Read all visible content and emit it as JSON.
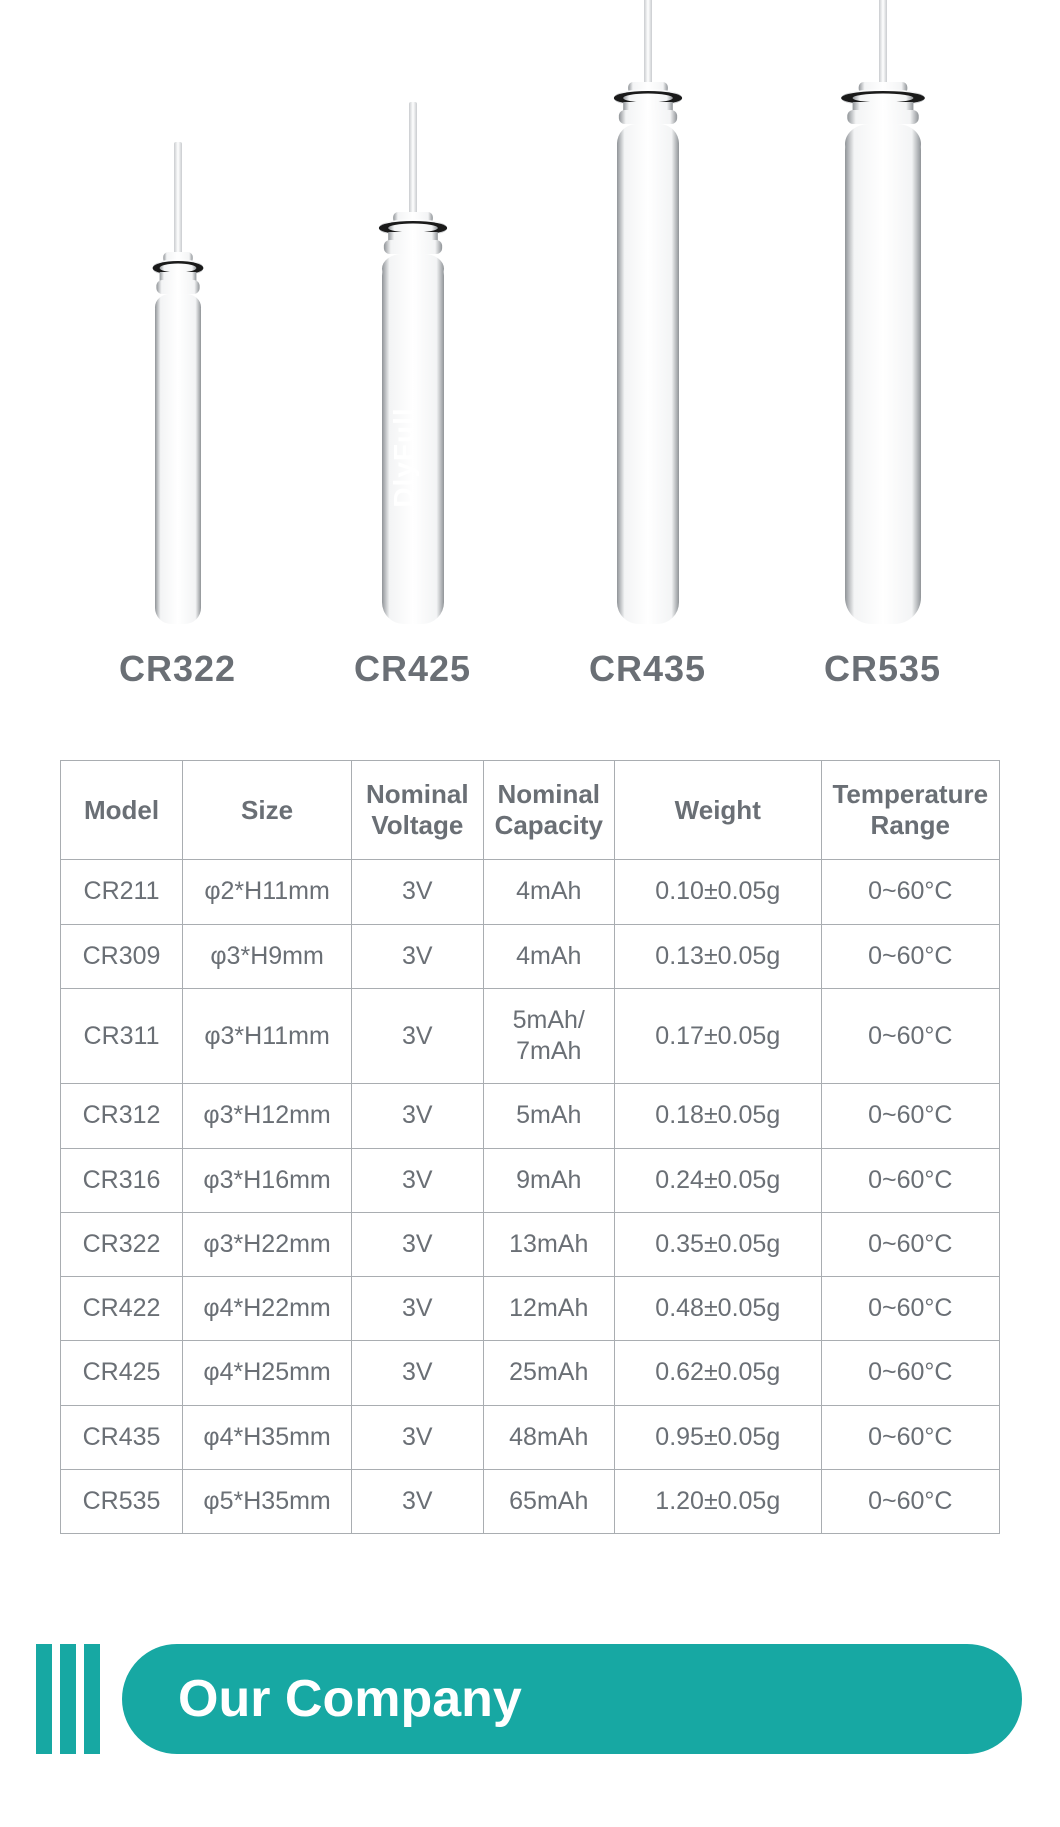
{
  "batteries": [
    {
      "label": "CR322",
      "body_h": 330,
      "body_w": 46,
      "watermark": ""
    },
    {
      "label": "CR425",
      "body_h": 370,
      "body_w": 62,
      "watermark": "DlyFull"
    },
    {
      "label": "CR435",
      "body_h": 500,
      "body_w": 62,
      "watermark": ""
    },
    {
      "label": "CR535",
      "body_h": 500,
      "body_w": 76,
      "watermark": ""
    }
  ],
  "table": {
    "headers": [
      "Model",
      "Size",
      "Nominal\nVoltage",
      "Nominal\nCapacity",
      "Weight",
      "Temperature\nRange"
    ],
    "rows": [
      [
        "CR211",
        "φ2*H11mm",
        "3V",
        "4mAh",
        "0.10±0.05g",
        "0~60°C"
      ],
      [
        "CR309",
        "φ3*H9mm",
        "3V",
        "4mAh",
        "0.13±0.05g",
        "0~60°C"
      ],
      [
        "CR311",
        "φ3*H11mm",
        "3V",
        "5mAh/\n7mAh",
        "0.17±0.05g",
        "0~60°C"
      ],
      [
        "CR312",
        "φ3*H12mm",
        "3V",
        "5mAh",
        "0.18±0.05g",
        "0~60°C"
      ],
      [
        "CR316",
        "φ3*H16mm",
        "3V",
        "9mAh",
        "0.24±0.05g",
        "0~60°C"
      ],
      [
        "CR322",
        "φ3*H22mm",
        "3V",
        "13mAh",
        "0.35±0.05g",
        "0~60°C"
      ],
      [
        "CR422",
        "φ4*H22mm",
        "3V",
        "12mAh",
        "0.48±0.05g",
        "0~60°C"
      ],
      [
        "CR425",
        "φ4*H25mm",
        "3V",
        "25mAh",
        "0.62±0.05g",
        "0~60°C"
      ],
      [
        "CR435",
        "φ4*H35mm",
        "3V",
        "48mAh",
        "0.95±0.05g",
        "0~60°C"
      ],
      [
        "CR535",
        "φ5*H35mm",
        "3V",
        "65mAh",
        "1.20±0.05g",
        "0~60°C"
      ]
    ]
  },
  "section_title": "Our Company",
  "colors": {
    "teal": "#17a8a3",
    "border": "#a9adb1",
    "text": "#6a6f75",
    "silver_light": "#f3f4f5",
    "silver_mid": "#c9cccf",
    "silver_dark": "#909498",
    "black": "#1a1a1a",
    "white": "#ffffff"
  }
}
